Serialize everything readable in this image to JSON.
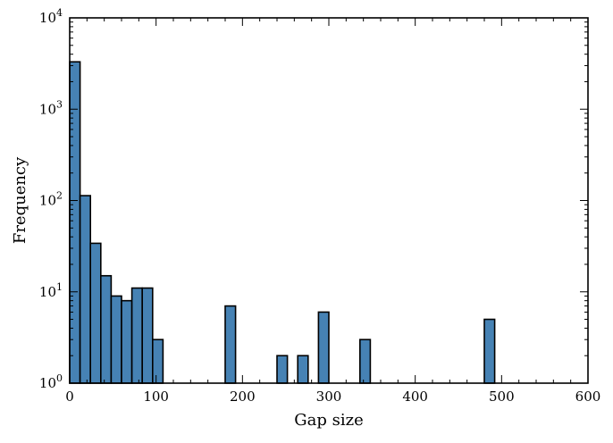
{
  "chart_data": {
    "type": "bar",
    "title": "",
    "xlabel": "Gap size",
    "ylabel": "Frequency",
    "yscale": "log",
    "xlim": [
      0,
      600
    ],
    "ylim": [
      1,
      10000
    ],
    "grid": false,
    "legend": "none",
    "bar_color": "#4682b4",
    "edge_color": "#000000",
    "x_ticks": [
      {
        "value": 0,
        "label": "0"
      },
      {
        "value": 100,
        "label": "100"
      },
      {
        "value": 200,
        "label": "200"
      },
      {
        "value": 300,
        "label": "300"
      },
      {
        "value": 400,
        "label": "400"
      },
      {
        "value": 500,
        "label": "500"
      },
      {
        "value": 600,
        "label": "600"
      }
    ],
    "y_ticks": [
      {
        "value": 1,
        "base": "10",
        "exp": "0"
      },
      {
        "value": 10,
        "base": "10",
        "exp": "1"
      },
      {
        "value": 100,
        "base": "10",
        "exp": "2"
      },
      {
        "value": 1000,
        "base": "10",
        "exp": "3"
      },
      {
        "value": 10000,
        "base": "10",
        "exp": "4"
      }
    ],
    "bins": [
      {
        "x0": 0,
        "x1": 12,
        "count": 3300
      },
      {
        "x0": 12,
        "x1": 24,
        "count": 113
      },
      {
        "x0": 24,
        "x1": 36,
        "count": 34
      },
      {
        "x0": 36,
        "x1": 48,
        "count": 15
      },
      {
        "x0": 48,
        "x1": 60,
        "count": 9
      },
      {
        "x0": 60,
        "x1": 72,
        "count": 8
      },
      {
        "x0": 72,
        "x1": 84,
        "count": 11
      },
      {
        "x0": 84,
        "x1": 96,
        "count": 11
      },
      {
        "x0": 96,
        "x1": 108,
        "count": 3
      },
      {
        "x0": 180,
        "x1": 192,
        "count": 7
      },
      {
        "x0": 240,
        "x1": 252,
        "count": 2
      },
      {
        "x0": 264,
        "x1": 276,
        "count": 2
      },
      {
        "x0": 288,
        "x1": 300,
        "count": 6
      },
      {
        "x0": 336,
        "x1": 348,
        "count": 3
      },
      {
        "x0": 480,
        "x1": 492,
        "count": 5
      }
    ]
  }
}
